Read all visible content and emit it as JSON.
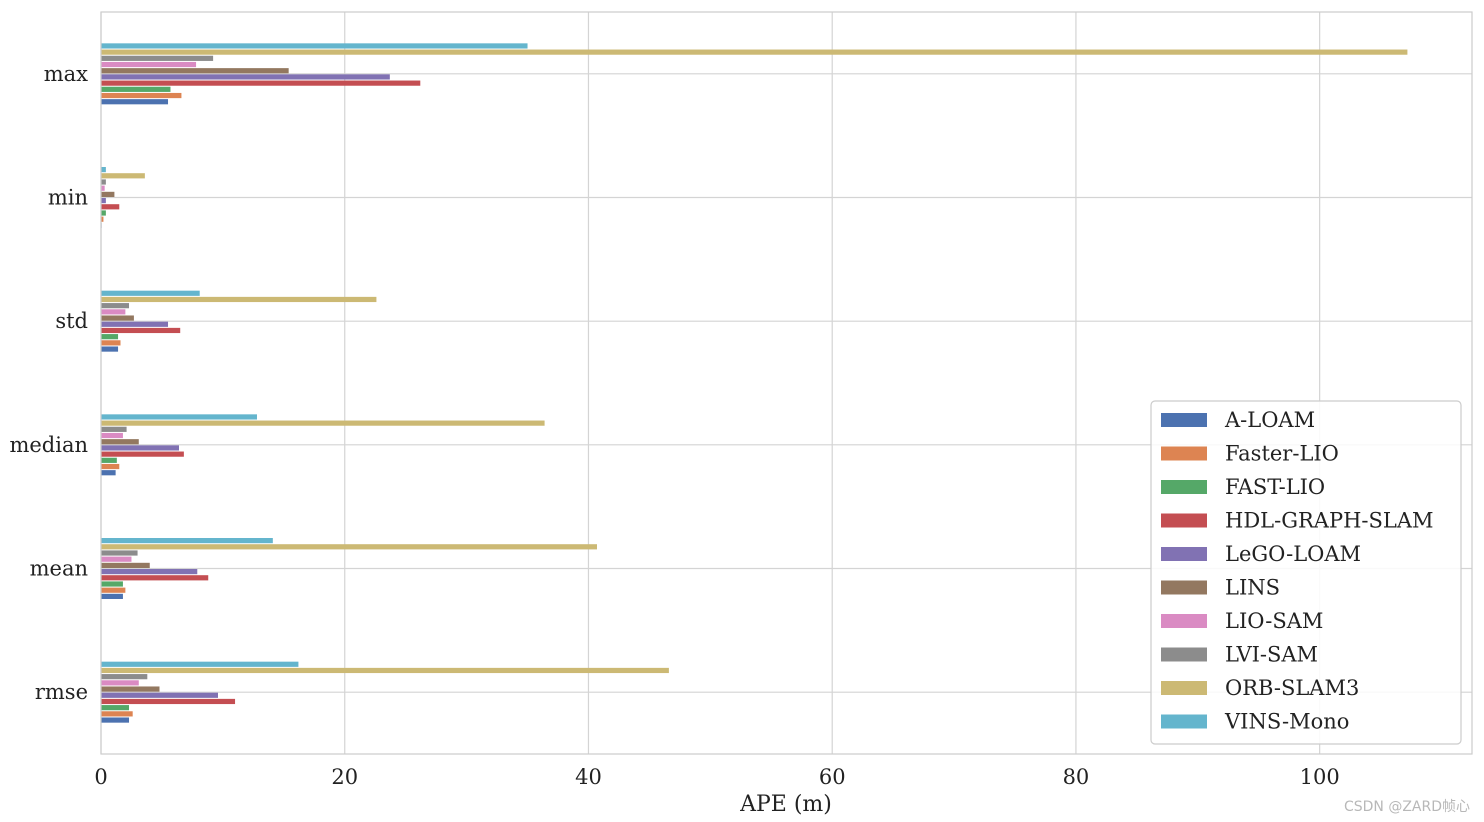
{
  "chart_data": {
    "type": "bar",
    "orientation": "horizontal",
    "xlabel": "APE (m)",
    "ylabel": "",
    "xlim": [
      0,
      112.5
    ],
    "xticks": [
      "0",
      "20",
      "40",
      "60",
      "80",
      "100"
    ],
    "categories": [
      "max",
      "min",
      "std",
      "median",
      "mean",
      "rmse"
    ],
    "legend_position": "lower-right",
    "grid": true,
    "series": [
      {
        "name": "A-LOAM",
        "color": "#4c72b0",
        "values": [
          5.5,
          0.05,
          1.4,
          1.2,
          1.8,
          2.3
        ]
      },
      {
        "name": "Faster-LIO",
        "color": "#dd8452",
        "values": [
          6.6,
          0.2,
          1.6,
          1.5,
          2.0,
          2.6
        ]
      },
      {
        "name": "FAST-LIO",
        "color": "#55a868",
        "values": [
          5.7,
          0.4,
          1.4,
          1.3,
          1.8,
          2.3
        ]
      },
      {
        "name": "HDL-GRAPH-SLAM",
        "color": "#c44e52",
        "values": [
          26.2,
          1.5,
          6.5,
          6.8,
          8.8,
          11.0
        ]
      },
      {
        "name": "LeGO-LOAM",
        "color": "#8172b3",
        "values": [
          23.7,
          0.4,
          5.5,
          6.4,
          7.9,
          9.6
        ]
      },
      {
        "name": "LINS",
        "color": "#937860",
        "values": [
          15.4,
          1.1,
          2.7,
          3.1,
          4.0,
          4.8
        ]
      },
      {
        "name": "LIO-SAM",
        "color": "#da8bc3",
        "values": [
          7.8,
          0.3,
          2.0,
          1.8,
          2.5,
          3.1
        ]
      },
      {
        "name": "LVI-SAM",
        "color": "#8c8c8c",
        "values": [
          9.2,
          0.4,
          2.3,
          2.1,
          3.0,
          3.8
        ]
      },
      {
        "name": "ORB-SLAM3",
        "color": "#ccb974",
        "values": [
          107.2,
          3.6,
          22.6,
          36.4,
          40.7,
          46.6
        ]
      },
      {
        "name": "VINS-Mono",
        "color": "#64b5cd",
        "values": [
          35.0,
          0.4,
          8.1,
          12.8,
          14.1,
          16.2
        ]
      }
    ]
  },
  "watermark": "CSDN @ZARD帧心"
}
